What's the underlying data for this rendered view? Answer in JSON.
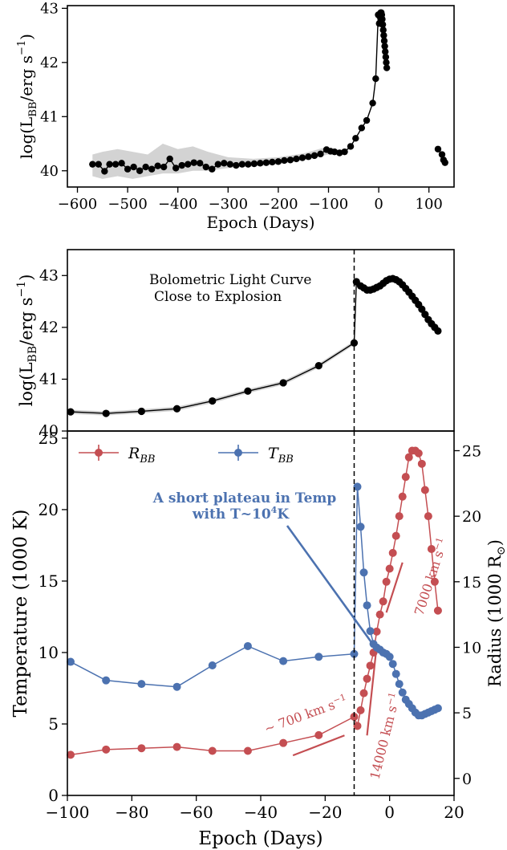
{
  "chart_data": [
    {
      "type": "scatter",
      "panel": "top",
      "ylabel_main": "log(L",
      "ylabel_sub": "BB",
      "ylabel_tail": "/erg s",
      "ylabel_exp": "−1",
      "ylabel_close": ")",
      "xlabel": "Epoch (Days)",
      "xlim": [
        -620,
        150
      ],
      "ylim": [
        39.7,
        43.05
      ],
      "xticks": [
        {
          "v": -600,
          "label": "−600"
        },
        {
          "v": -500,
          "label": "−500"
        },
        {
          "v": -400,
          "label": "−400"
        },
        {
          "v": -300,
          "label": "−300"
        },
        {
          "v": -200,
          "label": "−200"
        },
        {
          "v": -100,
          "label": "−100"
        },
        {
          "v": 0,
          "label": "0"
        },
        {
          "v": 100,
          "label": "100"
        }
      ],
      "yticks": [
        {
          "v": 40,
          "label": "40"
        },
        {
          "v": 41,
          "label": "41"
        },
        {
          "v": 42,
          "label": "42"
        },
        {
          "v": 43,
          "label": "43"
        }
      ],
      "band": [
        {
          "x": -570,
          "lo": 39.9,
          "hi": 40.3
        },
        {
          "x": -550,
          "lo": 39.85,
          "hi": 40.35
        },
        {
          "x": -520,
          "lo": 39.9,
          "hi": 40.4
        },
        {
          "x": -490,
          "lo": 39.85,
          "hi": 40.35
        },
        {
          "x": -460,
          "lo": 39.9,
          "hi": 40.3
        },
        {
          "x": -430,
          "lo": 39.95,
          "hi": 40.5
        },
        {
          "x": -400,
          "lo": 39.95,
          "hi": 40.4
        },
        {
          "x": -370,
          "lo": 40.0,
          "hi": 40.45
        },
        {
          "x": -340,
          "lo": 40.0,
          "hi": 40.35
        },
        {
          "x": -300,
          "lo": 40.05,
          "hi": 40.25
        },
        {
          "x": -250,
          "lo": 40.08,
          "hi": 40.22
        },
        {
          "x": -200,
          "lo": 40.12,
          "hi": 40.25
        },
        {
          "x": -150,
          "lo": 40.2,
          "hi": 40.32
        },
        {
          "x": -100,
          "lo": 40.3,
          "hi": 40.45
        }
      ],
      "series": [
        {
          "points": [
            [
              -570,
              40.12
            ],
            [
              -558,
              40.12
            ],
            [
              -546,
              39.99
            ],
            [
              -536,
              40.12
            ],
            [
              -524,
              40.12
            ],
            [
              -512,
              40.14
            ],
            [
              -500,
              40.03
            ],
            [
              -488,
              40.07
            ],
            [
              -476,
              40.0
            ],
            [
              -464,
              40.07
            ],
            [
              -452,
              40.03
            ],
            [
              -440,
              40.09
            ],
            [
              -428,
              40.07
            ],
            [
              -416,
              40.22
            ],
            [
              -404,
              40.05
            ],
            [
              -392,
              40.1
            ],
            [
              -380,
              40.12
            ],
            [
              -368,
              40.15
            ],
            [
              -356,
              40.14
            ],
            [
              -344,
              40.07
            ],
            [
              -332,
              40.03
            ],
            [
              -320,
              40.12
            ],
            [
              -308,
              40.14
            ],
            [
              -296,
              40.12
            ],
            [
              -284,
              40.1
            ],
            [
              -272,
              40.12
            ],
            [
              -260,
              40.12
            ],
            [
              -248,
              40.13
            ],
            [
              -236,
              40.14
            ],
            [
              -224,
              40.15
            ],
            [
              -212,
              40.16
            ],
            [
              -200,
              40.17
            ],
            [
              -188,
              40.19
            ],
            [
              -176,
              40.2
            ],
            [
              -164,
              40.22
            ],
            [
              -152,
              40.24
            ],
            [
              -140,
              40.26
            ],
            [
              -128,
              40.28
            ],
            [
              -116,
              40.31
            ],
            [
              -104,
              40.39
            ],
            [
              -96,
              40.36
            ],
            [
              -88,
              40.35
            ],
            [
              -78,
              40.33
            ],
            [
              -68,
              40.35
            ],
            [
              -56,
              40.45
            ],
            [
              -46,
              40.6
            ],
            [
              -34,
              40.79
            ],
            [
              -24,
              40.93
            ],
            [
              -12,
              41.25
            ],
            [
              -6,
              41.7
            ],
            [
              -1,
              42.88
            ],
            [
              1,
              42.72
            ],
            [
              2,
              42.85
            ],
            [
              3,
              42.9
            ],
            [
              4,
              42.92
            ],
            [
              5,
              42.92
            ],
            [
              6,
              42.88
            ],
            [
              7,
              42.8
            ],
            [
              8,
              42.7
            ],
            [
              9,
              42.6
            ],
            [
              10,
              42.5
            ],
            [
              11,
              42.4
            ],
            [
              12,
              42.3
            ],
            [
              13,
              42.2
            ],
            [
              14,
              42.1
            ],
            [
              15,
              42.0
            ],
            [
              16,
              41.9
            ],
            [
              118,
              40.4
            ],
            [
              126,
              40.3
            ],
            [
              129,
              40.2
            ],
            [
              132,
              40.15
            ]
          ],
          "gap_after_x": 16
        }
      ]
    },
    {
      "type": "line",
      "panel": "middle",
      "annotation_line1": "Bolometric Light Curve",
      "annotation_line2": "Close to Explosion",
      "ylabel_main": "log(L",
      "ylabel_sub": "BB",
      "ylabel_tail": "/erg s",
      "ylabel_exp": "−1",
      "ylabel_close": ")",
      "xlim": [
        -100,
        20
      ],
      "ylim": [
        40,
        43.5
      ],
      "yticks": [
        {
          "v": 40,
          "label": "40"
        },
        {
          "v": 41,
          "label": "41"
        },
        {
          "v": 42,
          "label": "42"
        },
        {
          "v": 43,
          "label": "43"
        }
      ],
      "vline_x": -11,
      "series": [
        {
          "points": [
            [
              -99,
              40.37
            ],
            [
              -88,
              40.34
            ],
            [
              -77,
              40.38
            ],
            [
              -66,
              40.43
            ],
            [
              -55,
              40.58
            ],
            [
              -44,
              40.77
            ],
            [
              -33,
              40.93
            ],
            [
              -22,
              41.26
            ],
            [
              -11,
              41.7
            ],
            [
              -10.3,
              42.88
            ],
            [
              -9,
              42.8
            ],
            [
              -8,
              42.76
            ],
            [
              -7,
              42.72
            ],
            [
              -6,
              42.72
            ],
            [
              -5,
              42.74
            ],
            [
              -4,
              42.77
            ],
            [
              -3,
              42.8
            ],
            [
              -2,
              42.85
            ],
            [
              -1,
              42.9
            ],
            [
              0,
              42.93
            ],
            [
              1,
              42.94
            ],
            [
              2,
              42.92
            ],
            [
              3,
              42.88
            ],
            [
              4,
              42.82
            ],
            [
              5,
              42.75
            ],
            [
              6,
              42.68
            ],
            [
              7,
              42.6
            ],
            [
              8,
              42.52
            ],
            [
              9,
              42.44
            ],
            [
              10,
              42.35
            ],
            [
              11,
              42.25
            ],
            [
              12,
              42.15
            ],
            [
              13,
              42.07
            ],
            [
              14,
              42.0
            ],
            [
              15,
              41.93
            ]
          ]
        }
      ]
    },
    {
      "type": "line",
      "panel": "bottom",
      "xlabel": "Epoch (Days)",
      "ylabel": "Temperature (1000 K)",
      "ylabel2": "Radius (1000 R",
      "ylabel2_symbol": "⊙",
      "ylabel2_close": ")",
      "xlim": [
        -100,
        20
      ],
      "ylim": [
        0,
        25.5
      ],
      "ylim2": [
        -1.3,
        26.5
      ],
      "xticks": [
        {
          "v": -100,
          "label": "−100"
        },
        {
          "v": -80,
          "label": "−80"
        },
        {
          "v": -60,
          "label": "−60"
        },
        {
          "v": -40,
          "label": "−40"
        },
        {
          "v": -20,
          "label": "−20"
        },
        {
          "v": 0,
          "label": "0"
        },
        {
          "v": 20,
          "label": "20"
        }
      ],
      "yticks": [
        {
          "v": 0,
          "label": "0"
        },
        {
          "v": 5,
          "label": "5"
        },
        {
          "v": 10,
          "label": "10"
        },
        {
          "v": 15,
          "label": "15"
        },
        {
          "v": 20,
          "label": "20"
        },
        {
          "v": 25,
          "label": "25"
        }
      ],
      "yticks2": [
        {
          "v": 0,
          "label": "0"
        },
        {
          "v": 5,
          "label": "5"
        },
        {
          "v": 10,
          "label": "10"
        },
        {
          "v": 15,
          "label": "15"
        },
        {
          "v": 20,
          "label": "20"
        },
        {
          "v": 25,
          "label": "25"
        }
      ],
      "vline_x": -11,
      "legend": [
        {
          "label": "R",
          "sub": "BB",
          "color": "#c44e52"
        },
        {
          "label": "T",
          "sub": "BB",
          "color": "#4c72b0"
        }
      ],
      "annotation_blue_line1": "A short plateau in Temp",
      "annotation_blue_line2": "with T~10",
      "annotation_blue_exp": "4",
      "annotation_blue_tail": "K",
      "vel_labels": [
        {
          "text": "~ 700 km s",
          "exp": "−1"
        },
        {
          "text": "14000 km s",
          "exp": "−1"
        },
        {
          "text": "7000 km s",
          "exp": "−1"
        }
      ],
      "vel_lines": [
        {
          "x1": -30,
          "y1": 2.8,
          "x2": -14,
          "y2": 4.2
        },
        {
          "x1": -7,
          "y1": 4.2,
          "x2": -4,
          "y2": 10.5
        },
        {
          "x1": -1,
          "y1": 12.8,
          "x2": 4,
          "y2": 16.3
        }
      ],
      "colors": {
        "radius": "#c44e52",
        "temperature": "#4c72b0",
        "annotation": "#4c72b0"
      },
      "series": [
        {
          "name": "R_BB",
          "axis": "right",
          "points": [
            [
              -99,
              1.8
            ],
            [
              -88,
              2.2
            ],
            [
              -77,
              2.3
            ],
            [
              -66,
              2.4
            ],
            [
              -55,
              2.1
            ],
            [
              -44,
              2.1
            ],
            [
              -33,
              2.7
            ],
            [
              -22,
              3.3
            ],
            [
              -11,
              4.7
            ],
            [
              -10,
              4.0
            ],
            [
              -9,
              5.2
            ],
            [
              -8,
              6.5
            ],
            [
              -7,
              7.6
            ],
            [
              -6,
              8.6
            ],
            [
              -5,
              9.6
            ],
            [
              -4,
              11.2
            ],
            [
              -3,
              12.5
            ],
            [
              -2,
              13.5
            ],
            [
              -1,
              15.0
            ],
            [
              0,
              16.0
            ],
            [
              1,
              17.2
            ],
            [
              2,
              18.5
            ],
            [
              3,
              20.0
            ],
            [
              4,
              21.5
            ],
            [
              5,
              23.0
            ],
            [
              6,
              24.5
            ],
            [
              7,
              25.0
            ],
            [
              8,
              25.0
            ],
            [
              9,
              24.8
            ],
            [
              10,
              24.0
            ],
            [
              11,
              22.0
            ],
            [
              12,
              20.0
            ],
            [
              13,
              17.5
            ],
            [
              14,
              15.0
            ],
            [
              15,
              12.8
            ]
          ]
        },
        {
          "name": "T_BB",
          "axis": "left",
          "points": [
            [
              -99,
              9.35
            ],
            [
              -88,
              8.05
            ],
            [
              -77,
              7.8
            ],
            [
              -66,
              7.6
            ],
            [
              -55,
              9.1
            ],
            [
              -44,
              10.45
            ],
            [
              -33,
              9.4
            ],
            [
              -22,
              9.7
            ],
            [
              -11,
              9.9
            ],
            [
              -10,
              21.6
            ],
            [
              -9,
              18.8
            ],
            [
              -8,
              15.6
            ],
            [
              -7,
              13.3
            ],
            [
              -6,
              11.5
            ],
            [
              -5,
              10.6
            ],
            [
              -4,
              10.35
            ],
            [
              -3,
              10.2
            ],
            [
              -2,
              10.0
            ],
            [
              -1,
              9.9
            ],
            [
              0,
              9.7
            ],
            [
              1,
              9.2
            ],
            [
              2,
              8.5
            ],
            [
              3,
              7.8
            ],
            [
              4,
              7.2
            ],
            [
              5,
              6.7
            ],
            [
              6,
              6.4
            ],
            [
              7,
              6.1
            ],
            [
              8,
              5.8
            ],
            [
              9,
              5.6
            ],
            [
              10,
              5.6
            ],
            [
              11,
              5.7
            ],
            [
              12,
              5.8
            ],
            [
              13,
              5.9
            ],
            [
              14,
              6.0
            ],
            [
              15,
              6.1
            ]
          ]
        }
      ]
    }
  ]
}
